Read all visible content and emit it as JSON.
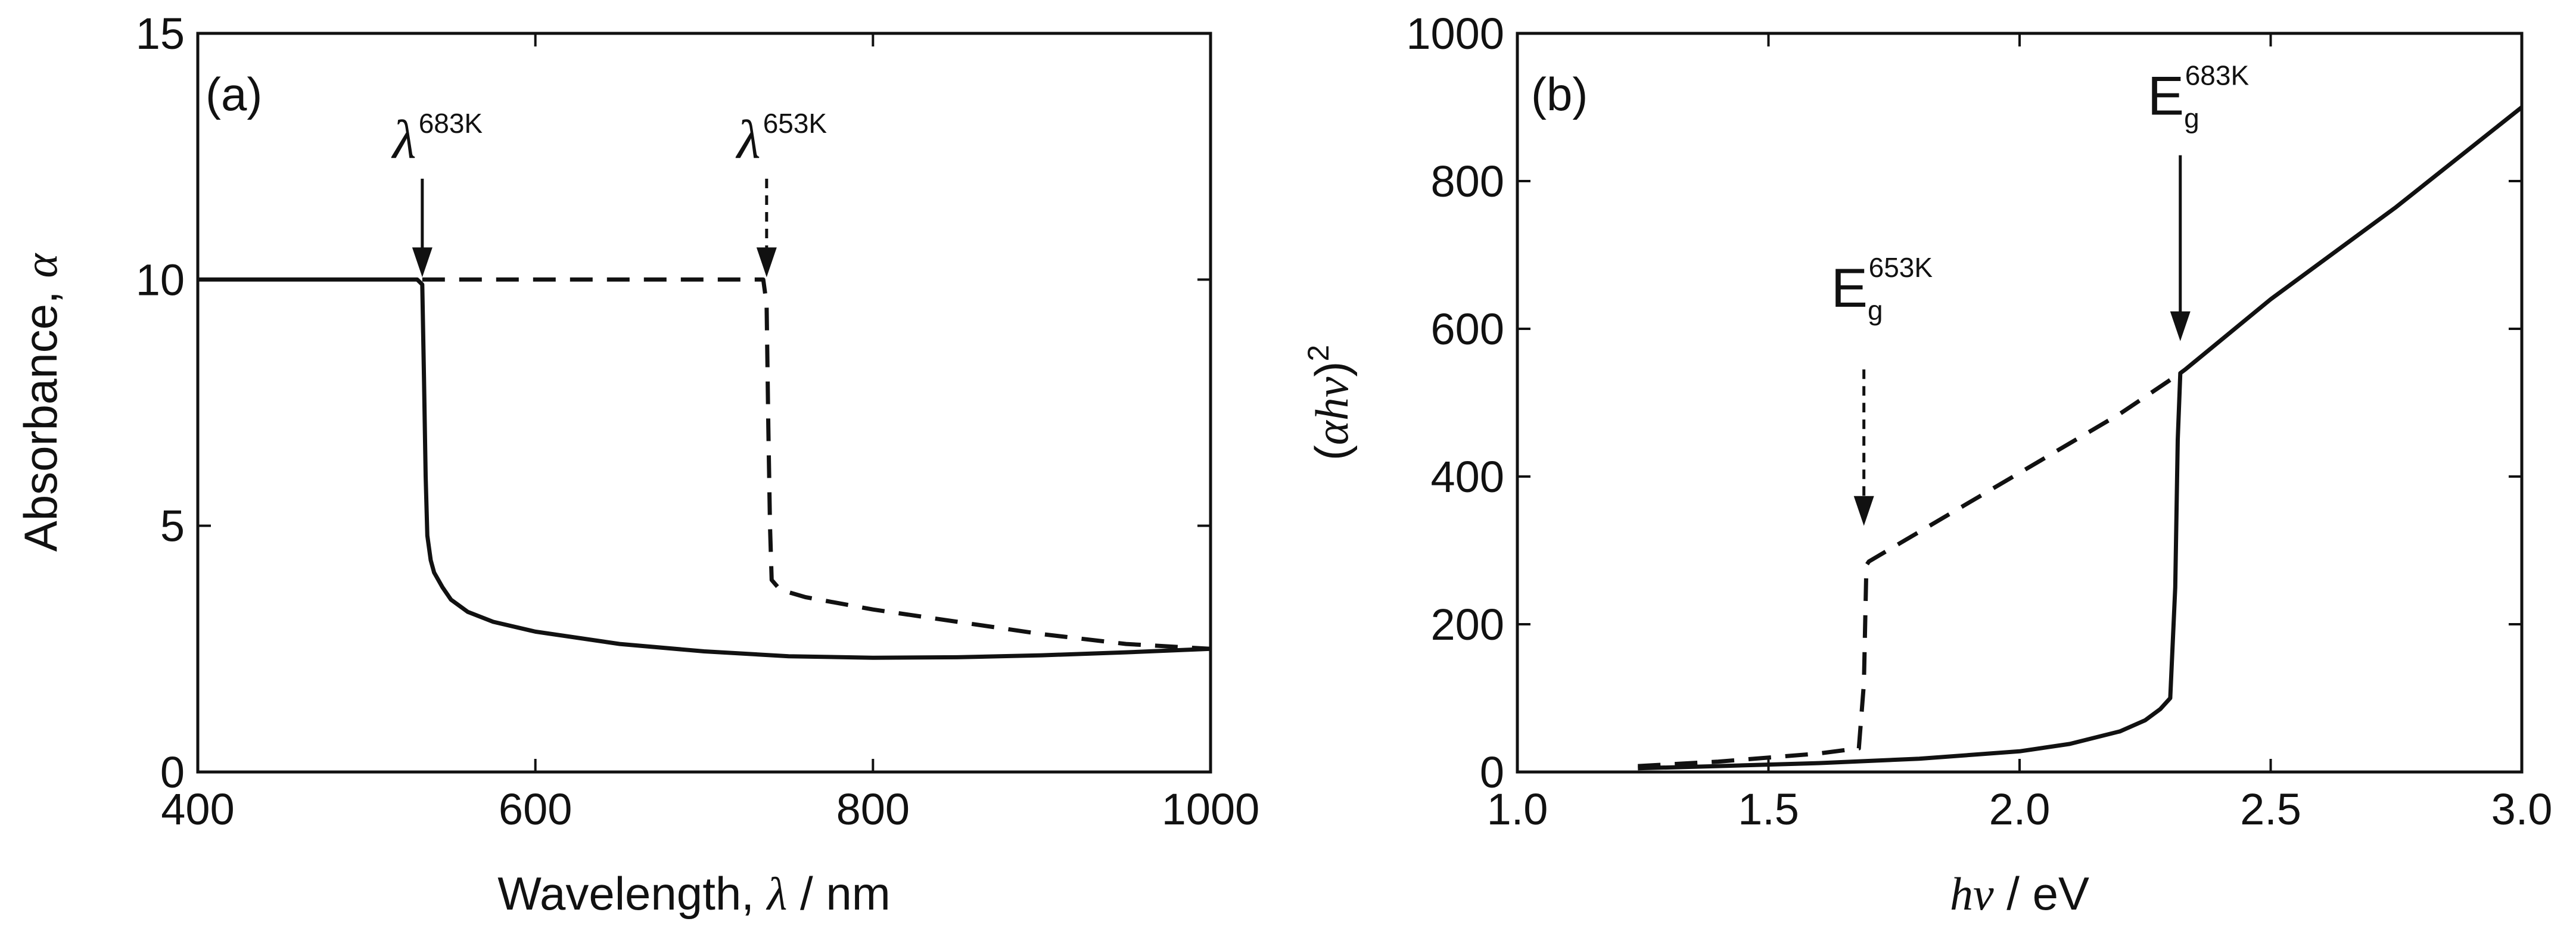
{
  "chart_data": [
    {
      "type": "line",
      "panel_label": "(a)",
      "xlabel": "Wavelength, λ / nm",
      "xlabel_parts": {
        "prefix": "Wavelength, ",
        "symbol": "λ",
        "suffix": " / nm"
      },
      "ylabel": "Absorbance, α",
      "ylabel_parts": {
        "prefix": "Absorbance, ",
        "symbol": "α"
      },
      "xlim": [
        400,
        1000
      ],
      "ylim": [
        0,
        15
      ],
      "x_ticks": [
        "400",
        "600",
        "800",
        "1000"
      ],
      "y_ticks": [
        "0",
        "5",
        "10",
        "15"
      ],
      "grid": false,
      "series": [
        {
          "name": "683K",
          "style": "solid",
          "x": [
            400,
            530,
            533,
            534,
            535,
            536,
            538,
            540,
            545,
            550,
            560,
            575,
            600,
            650,
            700,
            750,
            800,
            850,
            900,
            950,
            1000
          ],
          "y": [
            10.0,
            10.0,
            9.9,
            8.0,
            6.0,
            4.8,
            4.3,
            4.05,
            3.75,
            3.5,
            3.25,
            3.05,
            2.85,
            2.6,
            2.45,
            2.35,
            2.32,
            2.33,
            2.37,
            2.43,
            2.5
          ]
        },
        {
          "name": "653K",
          "style": "dashed",
          "x": [
            533,
            735,
            737,
            738,
            739,
            740,
            745,
            760,
            800,
            850,
            900,
            950,
            1000
          ],
          "y": [
            10.0,
            10.0,
            9.5,
            7.0,
            5.0,
            3.9,
            3.7,
            3.55,
            3.3,
            3.05,
            2.8,
            2.6,
            2.5
          ]
        }
      ],
      "annotations": [
        {
          "symbol": "λ",
          "superscript": "683K",
          "x": 533,
          "arrow_to_y": 10.0,
          "style": "solid"
        },
        {
          "symbol": "λ",
          "superscript": "653K",
          "x": 737,
          "arrow_to_y": 10.0,
          "style": "dashed"
        }
      ]
    },
    {
      "type": "line",
      "panel_label": "(b)",
      "xlabel": "hν / eV",
      "xlabel_parts": {
        "symbol": "hν",
        "suffix": " / eV"
      },
      "ylabel": "(αhν)²",
      "ylabel_parts": {
        "open": "(",
        "symbol": "αhν",
        "close": ")",
        "power": "2"
      },
      "xlim": [
        1.0,
        3.0
      ],
      "ylim": [
        0,
        1000
      ],
      "x_ticks": [
        "1.0",
        "1.5",
        "2.0",
        "2.5",
        "3.0"
      ],
      "y_ticks": [
        "0",
        "200",
        "400",
        "600",
        "800",
        "1000"
      ],
      "grid": false,
      "series": [
        {
          "name": "683K",
          "style": "solid",
          "x": [
            1.24,
            1.4,
            1.6,
            1.8,
            2.0,
            2.1,
            2.2,
            2.25,
            2.28,
            2.3,
            2.31,
            2.315,
            2.32,
            2.33,
            2.5,
            2.75,
            3.0
          ],
          "y": [
            5,
            8,
            12,
            18,
            28,
            38,
            55,
            70,
            85,
            100,
            250,
            450,
            540,
            545,
            640,
            765,
            900
          ]
        },
        {
          "name": "653K",
          "style": "dashed",
          "x": [
            1.24,
            1.4,
            1.6,
            1.68,
            1.69,
            1.695,
            1.7,
            1.8,
            1.9,
            2.0,
            2.1,
            2.2,
            2.32
          ],
          "y": [
            8,
            14,
            25,
            32,
            120,
            280,
            285,
            325,
            365,
            405,
            445,
            485,
            540
          ]
        }
      ],
      "annotations": [
        {
          "symbol": "E",
          "subscript": "g",
          "superscript": "683K",
          "x": 2.32,
          "arrow_to_y": 580,
          "style": "solid"
        },
        {
          "symbol": "E",
          "subscript": "g",
          "superscript": "653K",
          "x": 1.69,
          "arrow_to_y": 330,
          "style": "dashed"
        }
      ]
    }
  ]
}
